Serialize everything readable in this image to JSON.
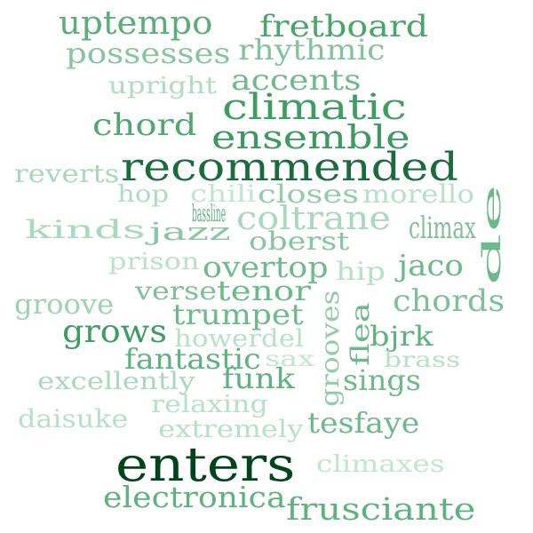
{
  "words": [
    {
      "text": "uptempo",
      "color": "#5aaf78"
    },
    {
      "text": "fretboard",
      "color": "#4aa56a"
    },
    {
      "text": "possesses",
      "color": "#86c5a0"
    },
    {
      "text": "rhythmic",
      "color": "#82c29c"
    },
    {
      "text": "upright",
      "color": "#aedbc4"
    },
    {
      "text": "accents",
      "color": "#6fba8b"
    },
    {
      "text": "chord",
      "color": "#4fa86e"
    },
    {
      "text": "climatic",
      "color": "#3f9d63"
    },
    {
      "text": "ensemble",
      "color": "#3c9a60"
    },
    {
      "text": "reverts",
      "color": "#a9d8be"
    },
    {
      "text": "recommended",
      "color": "#1a6b3e"
    },
    {
      "text": "hop",
      "color": "#aedbc4"
    },
    {
      "text": "chili",
      "color": "#c2e5d2"
    },
    {
      "text": "closes",
      "color": "#93cbab"
    },
    {
      "text": "morello",
      "color": "#b7e0ca"
    },
    {
      "text": "de",
      "color": "#6cb98a"
    },
    {
      "text": "bassline",
      "color": "#5eb280"
    },
    {
      "text": "coltrane",
      "color": "#a9d8be"
    },
    {
      "text": "kinds",
      "color": "#a9d8be"
    },
    {
      "text": "jazz",
      "color": "#8ac6a3"
    },
    {
      "text": "climax",
      "color": "#7fc09b"
    },
    {
      "text": "oberst",
      "color": "#86c5a0"
    },
    {
      "text": "prison",
      "color": "#b9e1cb"
    },
    {
      "text": "overtop",
      "color": "#6fba8b"
    },
    {
      "text": "hip",
      "color": "#b7e0ca"
    },
    {
      "text": "jaco",
      "color": "#6cb98a"
    },
    {
      "text": "verse",
      "color": "#7fc09b"
    },
    {
      "text": "tenor",
      "color": "#6cb98a"
    },
    {
      "text": "groove",
      "color": "#9ed2b4"
    },
    {
      "text": "chords",
      "color": "#7fc09b"
    },
    {
      "text": "grooves",
      "color": "#93cbab"
    },
    {
      "text": "flea",
      "color": "#6cb98a"
    },
    {
      "text": "trumpet",
      "color": "#6cb98a"
    },
    {
      "text": "grows",
      "color": "#3f9d63"
    },
    {
      "text": "howerdel",
      "color": "#b7e0ca"
    },
    {
      "text": "bjrk",
      "color": "#5eb280"
    },
    {
      "text": "fantastic",
      "color": "#5eb280"
    },
    {
      "text": "sax",
      "color": "#c2e5d2"
    },
    {
      "text": "brass",
      "color": "#b7e0ca"
    },
    {
      "text": "excellently",
      "color": "#a9d8be"
    },
    {
      "text": "funk",
      "color": "#5eb280"
    },
    {
      "text": "sings",
      "color": "#6cb98a"
    },
    {
      "text": "relaxing",
      "color": "#b7e0ca"
    },
    {
      "text": "daisuke",
      "color": "#b7e0ca"
    },
    {
      "text": "extremely",
      "color": "#b7e0ca"
    },
    {
      "text": "tesfaye",
      "color": "#6cb98a"
    },
    {
      "text": "enters",
      "color": "#00441b"
    },
    {
      "text": "climaxes",
      "color": "#c2e5d2"
    },
    {
      "text": "electronica",
      "color": "#5eb280"
    },
    {
      "text": "frusciante",
      "color": "#5eb280"
    }
  ]
}
